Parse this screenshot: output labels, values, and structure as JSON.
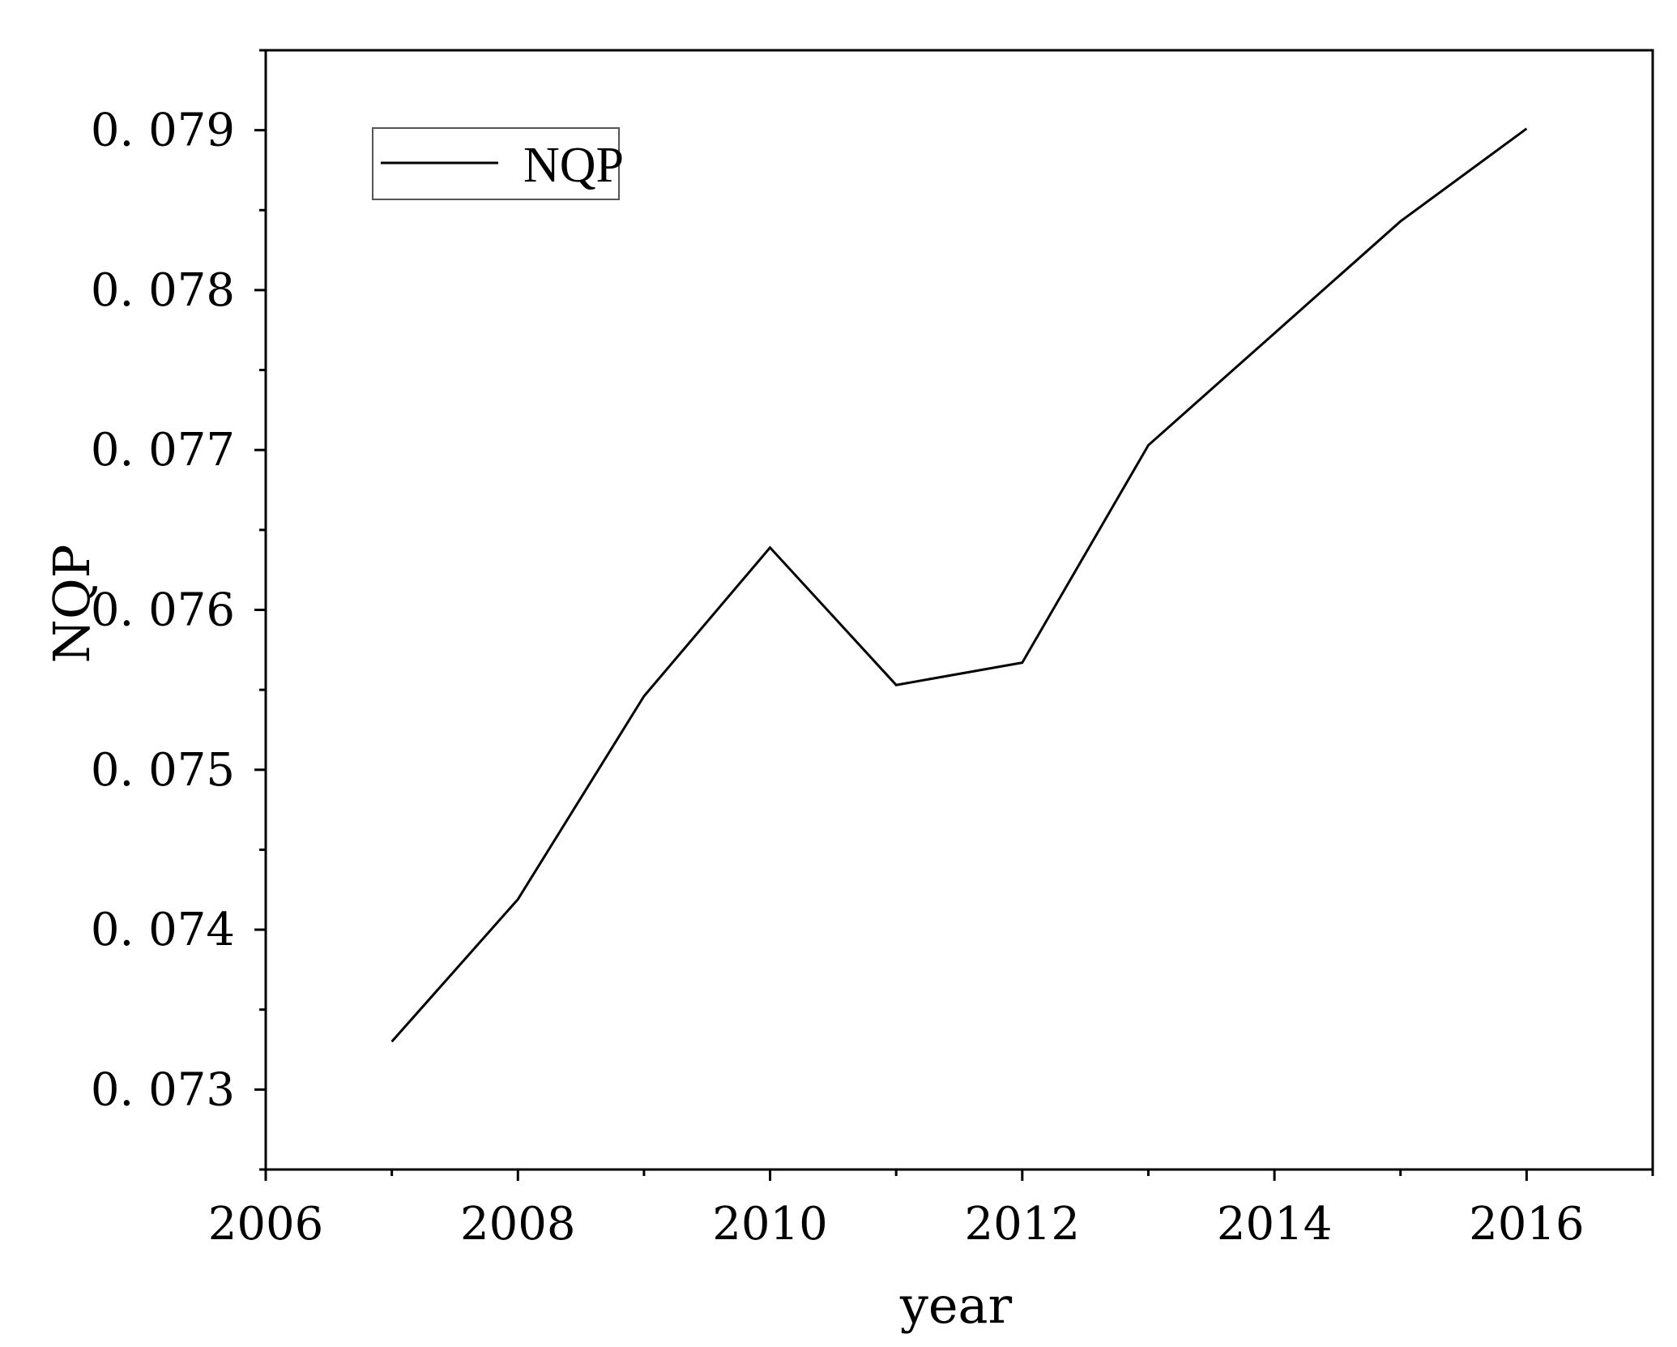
{
  "chart_data": {
    "type": "line",
    "title": "",
    "xlabel": "year",
    "ylabel": "NQP",
    "xlim": [
      2006,
      2017
    ],
    "ylim": [
      0.0725,
      0.0795
    ],
    "x_ticks": [
      2006,
      2008,
      2010,
      2012,
      2014,
      2016
    ],
    "x_tick_labels": [
      "2006",
      "2008",
      "2010",
      "2012",
      "2014",
      "2016"
    ],
    "x_minor_ticks": [
      2007,
      2009,
      2011,
      2013,
      2015,
      2017
    ],
    "y_ticks": [
      0.073,
      0.074,
      0.075,
      0.076,
      0.077,
      0.078,
      0.079
    ],
    "y_tick_labels": [
      "0. 073",
      "0. 074",
      "0. 075",
      "0. 076",
      "0. 077",
      "0. 078",
      "0. 079"
    ],
    "y_minor_ticks": [
      0.0725,
      0.0735,
      0.0745,
      0.0755,
      0.0765,
      0.0775,
      0.0785,
      0.0795
    ],
    "grid": false,
    "legend_position": "top-left",
    "series": [
      {
        "name": "NQP",
        "color": "#000000",
        "x": [
          2007,
          2008,
          2009,
          2010,
          2011,
          2012,
          2013,
          2014,
          2015,
          2016
        ],
        "y": [
          0.0733,
          0.07419,
          0.07546,
          0.07639,
          0.07553,
          0.07567,
          0.07703,
          0.07773,
          0.07843,
          0.07901
        ]
      }
    ]
  }
}
